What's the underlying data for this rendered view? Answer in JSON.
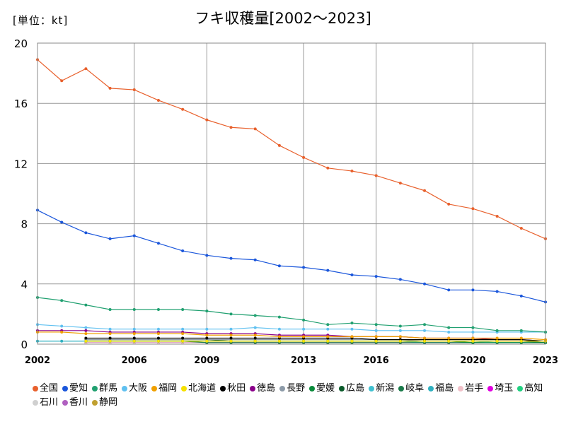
{
  "chart_data": {
    "type": "line",
    "title": "フキ収穫量[2002～2023]",
    "unit_label": "[単位：kt]",
    "xlabel": "",
    "ylabel": "",
    "x": [
      2002,
      2003,
      2004,
      2005,
      2006,
      2007,
      2008,
      2009,
      2010,
      2011,
      2012,
      2013,
      2014,
      2015,
      2016,
      2017,
      2018,
      2019,
      2020,
      2021,
      2022,
      2023
    ],
    "x_ticks": [
      "2002",
      "2006",
      "2009",
      "2013",
      "2016",
      "2020",
      "2023"
    ],
    "x_tick_values": [
      2002,
      2006,
      2009,
      2013,
      2016,
      2020,
      2023
    ],
    "ylim": [
      0,
      20
    ],
    "y_ticks": [
      "0",
      "4",
      "8",
      "12",
      "16",
      "20"
    ],
    "y_tick_values": [
      0,
      4,
      8,
      12,
      16,
      20
    ],
    "grid": true,
    "legend_position": "bottom",
    "series": [
      {
        "name": "全国",
        "color": "#e8602c",
        "values": [
          18.9,
          17.5,
          18.3,
          17.0,
          16.9,
          16.2,
          15.6,
          14.9,
          14.4,
          14.3,
          13.2,
          12.4,
          11.7,
          11.5,
          11.2,
          10.7,
          10.2,
          9.3,
          9.0,
          8.5,
          7.7,
          7.0
        ]
      },
      {
        "name": "愛知",
        "color": "#1a56db",
        "values": [
          8.9,
          8.1,
          7.4,
          7.0,
          7.2,
          6.7,
          6.2,
          5.9,
          5.7,
          5.6,
          5.2,
          5.1,
          4.9,
          4.6,
          4.5,
          4.3,
          4.0,
          3.6,
          3.6,
          3.5,
          3.2,
          2.8
        ]
      },
      {
        "name": "群馬",
        "color": "#20a070",
        "values": [
          3.1,
          2.9,
          2.6,
          2.3,
          2.3,
          2.3,
          2.3,
          2.2,
          2.0,
          1.9,
          1.8,
          1.6,
          1.3,
          1.4,
          1.3,
          1.2,
          1.3,
          1.1,
          1.1,
          0.9,
          0.9,
          0.8
        ]
      },
      {
        "name": "大阪",
        "color": "#5fc0f0",
        "values": [
          1.3,
          1.2,
          1.1,
          1.0,
          1.0,
          1.0,
          1.0,
          1.0,
          1.0,
          1.1,
          1.0,
          1.0,
          1.0,
          1.0,
          0.9,
          0.9,
          0.9,
          0.8,
          0.8,
          0.8,
          0.8,
          0.8
        ]
      },
      {
        "name": "福岡",
        "color": "#f0a000",
        "values": [
          0.8,
          0.8,
          0.7,
          0.7,
          0.7,
          0.7,
          0.7,
          0.6,
          0.6,
          0.6,
          0.5,
          0.5,
          0.5,
          0.5,
          0.5,
          0.5,
          0.4,
          0.4,
          0.4,
          0.4,
          0.4,
          0.3
        ]
      },
      {
        "name": "北海道",
        "color": "#f5e000",
        "values": [
          null,
          null,
          0.2,
          0.2,
          0.2,
          0.2,
          0.2,
          0.2,
          0.2,
          0.2,
          0.2,
          0.2,
          0.2,
          0.2,
          0.2,
          0.2,
          0.2,
          0.2,
          0.2,
          0.2,
          0.2,
          0.2
        ]
      },
      {
        "name": "秋田",
        "color": "#000000",
        "values": [
          null,
          null,
          0.4,
          0.4,
          0.4,
          0.4,
          0.4,
          0.4,
          0.4,
          0.4,
          0.4,
          0.4,
          0.4,
          0.4,
          0.3,
          0.3,
          0.3,
          0.3,
          0.3,
          0.3,
          0.3,
          0.2
        ]
      },
      {
        "name": "徳島",
        "color": "#8a008a",
        "values": [
          0.9,
          0.9,
          0.9,
          0.8,
          0.8,
          0.8,
          0.8,
          0.7,
          0.7,
          0.7,
          0.6,
          0.6,
          0.6,
          0.5,
          0.5,
          0.5,
          0.4,
          0.4,
          0.4,
          0.3,
          0.3,
          0.2
        ]
      },
      {
        "name": "長野",
        "color": "#8c9aa8",
        "values": [
          null,
          null,
          0.3,
          0.3,
          0.3,
          0.3,
          0.3,
          0.3,
          0.3,
          0.3,
          0.3,
          0.3,
          0.3,
          0.3,
          0.3,
          0.3,
          0.2,
          0.2,
          0.2,
          0.2,
          0.2,
          0.2
        ]
      },
      {
        "name": "愛媛",
        "color": "#0a8a3a",
        "values": [
          null,
          null,
          0.2,
          0.2,
          0.2,
          0.2,
          0.2,
          0.2,
          0.2,
          0.2,
          0.2,
          0.2,
          0.2,
          0.2,
          0.2,
          0.2,
          0.2,
          0.2,
          0.1,
          0.1,
          0.1,
          0.1
        ]
      },
      {
        "name": "広島",
        "color": "#0a5a2a",
        "values": [
          null,
          null,
          0.3,
          0.3,
          0.3,
          0.3,
          0.3,
          0.3,
          0.2,
          0.2,
          0.2,
          0.2,
          0.2,
          0.2,
          0.2,
          0.2,
          0.2,
          0.2,
          0.2,
          0.2,
          0.2,
          0.1
        ]
      },
      {
        "name": "新潟",
        "color": "#40c0d0",
        "values": [
          null,
          null,
          0.2,
          0.2,
          0.2,
          0.2,
          0.2,
          0.2,
          0.2,
          0.2,
          0.2,
          0.2,
          0.2,
          0.2,
          0.2,
          0.2,
          0.2,
          0.2,
          0.2,
          0.1,
          0.1,
          0.1
        ]
      },
      {
        "name": "岐阜",
        "color": "#1a7a4a",
        "values": [
          null,
          null,
          0.2,
          0.2,
          0.2,
          0.2,
          0.2,
          0.1,
          0.1,
          0.1,
          0.1,
          0.1,
          0.1,
          0.1,
          0.1,
          0.1,
          0.1,
          0.1,
          0.1,
          0.1,
          0.1,
          0.1
        ]
      },
      {
        "name": "福島",
        "color": "#30b0c0",
        "values": [
          0.2,
          0.2,
          0.2,
          0.2,
          0.2,
          0.2,
          0.2,
          0.2,
          0.2,
          0.2,
          0.2,
          0.2,
          0.2,
          0.2,
          0.2,
          0.2,
          0.1,
          0.1,
          0.1,
          0.1,
          0.1,
          0.1
        ]
      },
      {
        "name": "岩手",
        "color": "#f0c0c8",
        "values": [
          null,
          null,
          0.1,
          0.1,
          0.1,
          0.1,
          0.1,
          0.1,
          0.1,
          0.1,
          0.1,
          0.1,
          0.1,
          0.1,
          0.1,
          0.1,
          0.1,
          0.1,
          0.1,
          0.1,
          0.1,
          0.1
        ]
      },
      {
        "name": "埼玉",
        "color": "#e000e0",
        "values": [
          null,
          null,
          0.1,
          0.1,
          0.1,
          0.1,
          0.1,
          0.1,
          0.1,
          0.1,
          0.1,
          0.1,
          0.1,
          0.1,
          0.1,
          0.1,
          0.1,
          0.1,
          0.1,
          0.1,
          0.1,
          0.1
        ]
      },
      {
        "name": "高知",
        "color": "#20d080",
        "values": [
          null,
          null,
          0.1,
          0.1,
          0.1,
          0.1,
          0.1,
          0.1,
          0.1,
          0.1,
          0.1,
          0.1,
          0.1,
          0.1,
          0.1,
          0.1,
          0.1,
          0.1,
          0.1,
          0.1,
          0.1,
          0.1
        ]
      },
      {
        "name": "石川",
        "color": "#d0d0d0",
        "values": [
          null,
          null,
          0.1,
          0.1,
          0.1,
          0.1,
          0.1,
          0.1,
          0.1,
          0.1,
          0.1,
          0.1,
          0.1,
          0.1,
          0.1,
          0.1,
          0.1,
          0.1,
          0.1,
          0.1,
          0.1,
          0.1
        ]
      },
      {
        "name": "香川",
        "color": "#b060c0",
        "values": [
          null,
          null,
          0.1,
          0.1,
          0.1,
          0.1,
          0.1,
          0.1,
          0.1,
          0.1,
          0.1,
          0.1,
          0.1,
          0.1,
          0.1,
          0.1,
          0.1,
          0.1,
          0.1,
          0.1,
          0.1,
          0.1
        ]
      },
      {
        "name": "静岡",
        "color": "#c0a030",
        "values": [
          null,
          null,
          0.1,
          0.1,
          0.1,
          0.1,
          0.1,
          0.1,
          0.1,
          0.1,
          0.1,
          0.1,
          0.1,
          0.1,
          0.1,
          0.1,
          0.1,
          0.1,
          0.1,
          0.1,
          0.1,
          0.1
        ]
      }
    ]
  }
}
